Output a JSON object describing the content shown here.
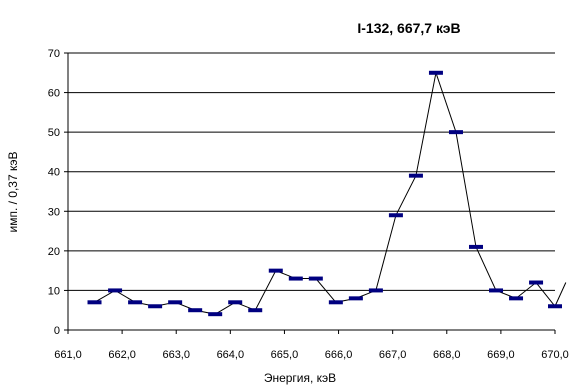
{
  "chart_data": {
    "type": "line",
    "title": "I-132,   667,7 кэВ",
    "xlabel": "Энергия, кэВ",
    "ylabel": "имп. / 0,37 кэВ",
    "xlim": [
      661.0,
      670.0
    ],
    "ylim": [
      0,
      70
    ],
    "xticks": [
      661.0,
      662.0,
      663.0,
      664.0,
      665.0,
      666.0,
      667.0,
      668.0,
      669.0,
      670.0
    ],
    "xtick_labels": [
      "661,0",
      "662,0",
      "663,0",
      "664,0",
      "665,0",
      "666,0",
      "667,0",
      "668,0",
      "669,0",
      "670,0"
    ],
    "yticks": [
      0,
      10,
      20,
      30,
      40,
      50,
      60,
      70
    ],
    "ytick_labels": [
      "0",
      "10",
      "20",
      "30",
      "40",
      "50",
      "60",
      "70"
    ],
    "grid": "horizontal",
    "legend": "none",
    "marker_color": "#000080",
    "line_color": "#000000",
    "series": [
      {
        "x": [
          661.49,
          661.87,
          662.24,
          662.61,
          662.98,
          663.35,
          663.72,
          664.09,
          664.46,
          664.84,
          665.21,
          665.58,
          665.95,
          666.32,
          666.69,
          667.06,
          667.43,
          667.8,
          668.17,
          668.54,
          668.91,
          669.28,
          669.65,
          670.0,
          670.2
        ],
        "values": [
          7,
          10,
          7,
          6,
          7,
          5,
          4,
          7,
          5,
          15,
          13,
          13,
          7,
          8,
          10,
          29,
          39,
          65,
          50,
          21,
          10,
          8,
          12,
          6,
          12
        ]
      }
    ]
  }
}
